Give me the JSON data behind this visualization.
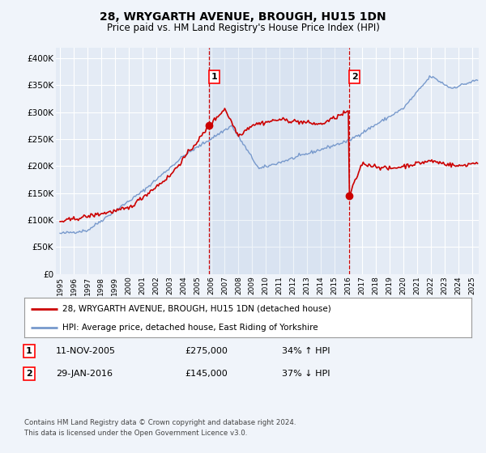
{
  "title": "28, WRYGARTH AVENUE, BROUGH, HU15 1DN",
  "subtitle": "Price paid vs. HM Land Registry's House Price Index (HPI)",
  "background_color": "#f0f4fa",
  "plot_bg_color": "#e4ebf5",
  "grid_color": "#ffffff",
  "red_color": "#cc0000",
  "blue_color": "#7799cc",
  "vline_color": "#cc0000",
  "marker1_year": 2005.87,
  "marker2_year": 2016.08,
  "marker1_price": 275000,
  "marker2_price": 145000,
  "legend_label_red": "28, WRYGARTH AVENUE, BROUGH, HU15 1DN (detached house)",
  "legend_label_blue": "HPI: Average price, detached house, East Riding of Yorkshire",
  "footer": "Contains HM Land Registry data © Crown copyright and database right 2024.\nThis data is licensed under the Open Government Licence v3.0.",
  "ylim": [
    0,
    420000
  ],
  "yticks": [
    0,
    50000,
    100000,
    150000,
    200000,
    250000,
    300000,
    350000,
    400000
  ],
  "ytick_labels": [
    "£0",
    "£50K",
    "£100K",
    "£150K",
    "£200K",
    "£250K",
    "£300K",
    "£350K",
    "£400K"
  ],
  "xlim_start": 1994.7,
  "xlim_end": 2025.5
}
